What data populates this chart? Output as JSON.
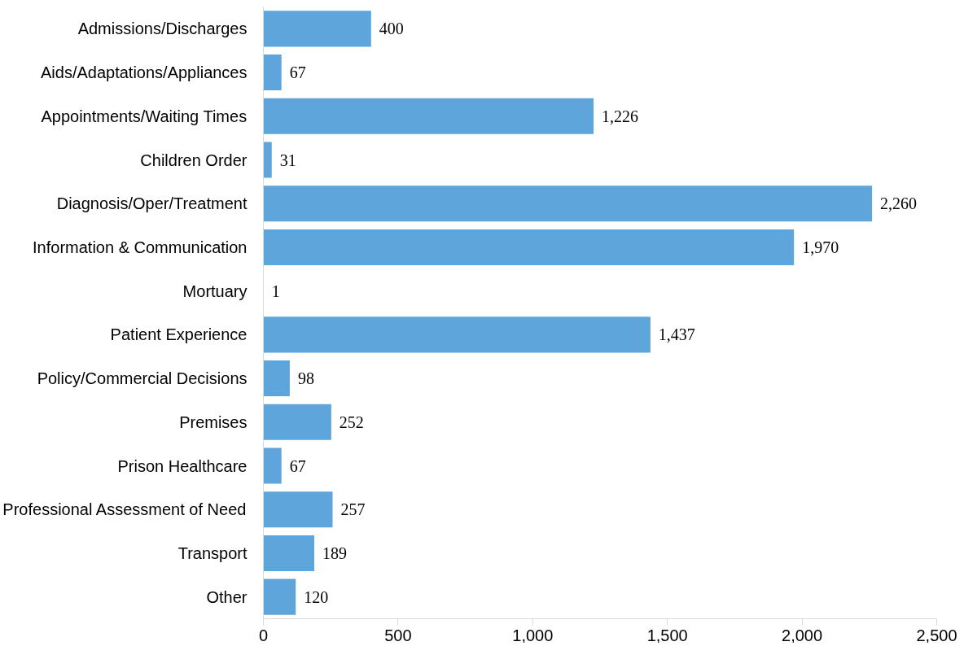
{
  "chart_data": {
    "type": "bar",
    "orientation": "horizontal",
    "categories": [
      "Admissions/Discharges",
      "Aids/Adaptations/Appliances",
      "Appointments/Waiting Times",
      "Children Order",
      "Diagnosis/Oper/Treatment",
      "Information & Communication",
      "Mortuary",
      "Patient Experience",
      "Policy/Commercial Decisions",
      "Premises",
      "Prison Healthcare",
      "Professional Assessment of Need",
      "Transport",
      "Other"
    ],
    "values": [
      400,
      67,
      1226,
      31,
      2260,
      1970,
      1,
      1437,
      98,
      252,
      67,
      257,
      189,
      120
    ],
    "value_labels": [
      "400",
      "67",
      "1,226",
      "31",
      "2,260",
      "1,970",
      "1",
      "1,437",
      "98",
      "252",
      "67",
      "257",
      "189",
      "120"
    ],
    "color": "#5ea5dc",
    "xlim": [
      0,
      2500
    ],
    "xticks": [
      0,
      {
        "value": 500,
        "label": "500"
      },
      {
        "value": 1000,
        "label": "1,000"
      },
      {
        "value": 1500,
        "label": "1,500"
      },
      {
        "value": 2000,
        "label": "2,000"
      },
      {
        "value": 2500,
        "label": "2,500"
      }
    ]
  }
}
